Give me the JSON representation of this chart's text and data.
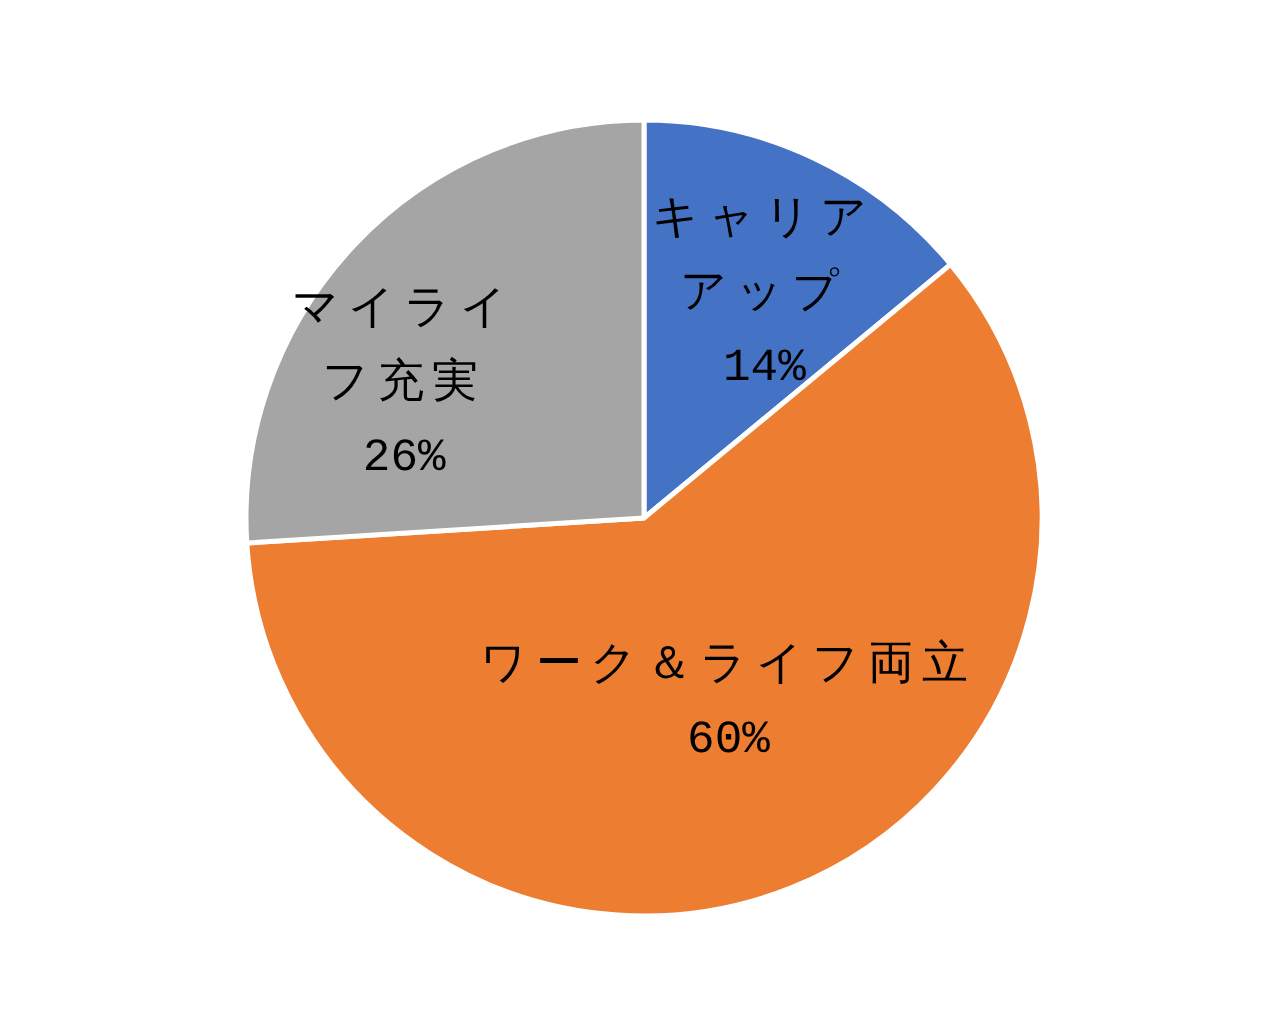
{
  "chart_data": {
    "type": "pie",
    "categories": [
      "キャリアアップ",
      "ワーク＆ライフ両立",
      "マイライフ充実"
    ],
    "values": [
      14,
      60,
      26
    ],
    "colors": [
      "#4472c4",
      "#ed7d31",
      "#a5a5a5"
    ],
    "value_labels": [
      "14%",
      "60%",
      "26%"
    ]
  }
}
